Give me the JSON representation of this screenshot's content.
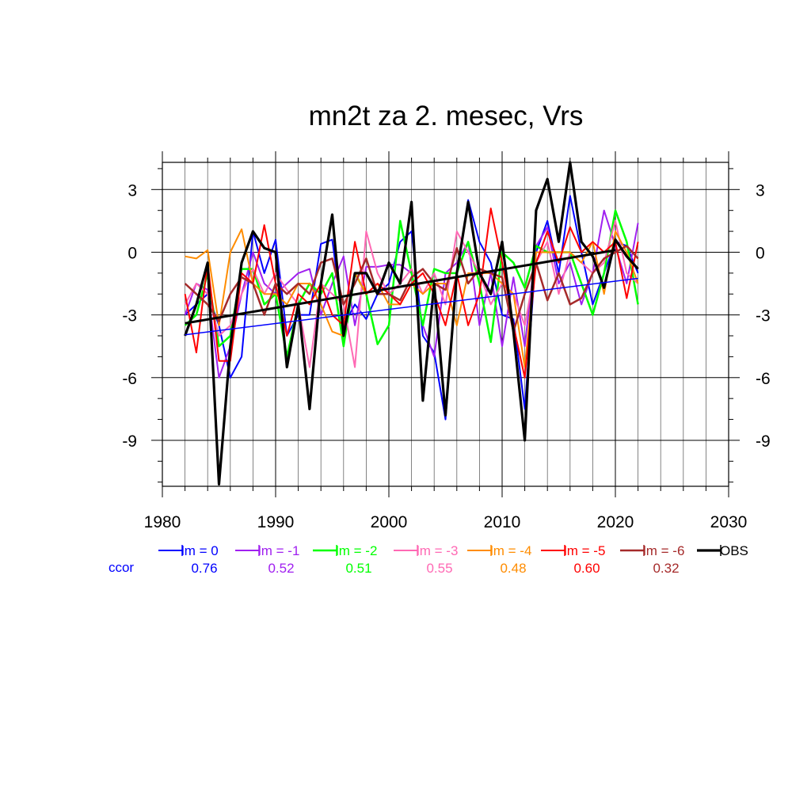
{
  "chart_data": {
    "type": "line",
    "title": "mn2t za 2. mesec, Vrs",
    "xlabel": "",
    "ylabel": "",
    "xlim": [
      1980,
      2030
    ],
    "ylim": [
      -11.2,
      4.3
    ],
    "xticks": [
      1980,
      1990,
      2000,
      2010,
      2020,
      2030
    ],
    "yticks": [
      3,
      0,
      -3,
      -6,
      -9
    ],
    "grid": true,
    "legend_position": "bottom",
    "ccor_label": "ccor",
    "x": [
      1982,
      1983,
      1984,
      1985,
      1986,
      1987,
      1988,
      1989,
      1990,
      1991,
      1992,
      1993,
      1994,
      1995,
      1996,
      1997,
      1998,
      1999,
      2000,
      2001,
      2002,
      2003,
      2004,
      2005,
      2006,
      2007,
      2008,
      2009,
      2010,
      2011,
      2012,
      2013,
      2014,
      2015,
      2016,
      2017,
      2018,
      2019,
      2020,
      2021,
      2022
    ],
    "series": [
      {
        "name": "lm = 0",
        "ccor": "0.76",
        "color": "#0000ff",
        "width": 2,
        "values": [
          -3.0,
          -2.5,
          -2.0,
          -3.5,
          -6.0,
          -5.0,
          1.0,
          -1.0,
          0.6,
          -4.0,
          -3.0,
          -3.0,
          0.4,
          0.6,
          -3.5,
          -2.5,
          -3.2,
          -2.0,
          -1.5,
          0.5,
          1.0,
          -4.0,
          -4.8,
          -8.0,
          -1.0,
          2.5,
          0.5,
          -0.5,
          -3.0,
          -3.2,
          -7.5,
          0.0,
          1.5,
          -1.0,
          2.7,
          0.0,
          -2.5,
          -1.0,
          0.5,
          0.3,
          -1.0
        ]
      },
      {
        "name": "lm = -1",
        "ccor": "0.52",
        "color": "#a020f0",
        "width": 2,
        "values": [
          -3.0,
          -1.5,
          -1.8,
          -6.0,
          -4.5,
          -2.0,
          0.0,
          -1.5,
          -2.0,
          -1.5,
          -1.0,
          -0.8,
          -3.0,
          -1.5,
          -0.2,
          -3.5,
          -0.7,
          -0.7,
          -0.6,
          -0.6,
          -1.0,
          -3.5,
          -5.0,
          -1.0,
          -0.5,
          0.5,
          -3.5,
          -1.0,
          -4.5,
          -1.2,
          -4.5,
          0.3,
          1.2,
          -1.5,
          -0.5,
          -2.5,
          -1.0,
          2.0,
          0.3,
          -1.5,
          1.4
        ]
      },
      {
        "name": "lm = -2",
        "ccor": "0.51",
        "color": "#00ff00",
        "width": 2.5,
        "values": [
          -3.5,
          -3.0,
          -1.0,
          -4.5,
          -4.0,
          -0.8,
          -0.8,
          -2.5,
          -2.0,
          -5.0,
          -2.5,
          -1.5,
          -2.0,
          -1.0,
          -4.5,
          -1.0,
          -2.0,
          -4.4,
          -3.5,
          1.5,
          -1.0,
          -3.5,
          -0.8,
          -1.0,
          -1.0,
          0.5,
          -1.5,
          -4.3,
          0.0,
          -0.5,
          -1.7,
          0.3,
          0.0,
          0.0,
          0.0,
          -1.5,
          -3.0,
          -1.0,
          2.0,
          0.5,
          -2.5
        ]
      },
      {
        "name": "lm = -3",
        "ccor": "0.55",
        "color": "#ff69b4",
        "width": 2,
        "values": [
          -2.5,
          -1.5,
          -2.0,
          -4.0,
          -3.5,
          -2.0,
          -0.8,
          -2.0,
          -1.0,
          -1.8,
          -2.5,
          -5.5,
          -1.5,
          -2.0,
          -2.5,
          -5.5,
          1.0,
          -1.0,
          -2.0,
          -1.5,
          -0.8,
          -2.0,
          -1.0,
          -2.5,
          1.0,
          0.0,
          -1.0,
          -2.5,
          -1.5,
          -2.0,
          -3.5,
          -0.5,
          0.5,
          -2.0,
          0.0,
          -0.5,
          -1.0,
          -0.5,
          1.5,
          -1.0,
          -1.5
        ]
      },
      {
        "name": "lm = -4",
        "ccor": "0.48",
        "color": "#ff8c00",
        "width": 2,
        "values": [
          -0.2,
          -0.3,
          0.1,
          -3.5,
          0.0,
          1.1,
          -1.5,
          -2.0,
          -2.0,
          -2.5,
          -1.5,
          -1.5,
          -2.5,
          -3.8,
          -4.0,
          -1.0,
          -2.0,
          -1.5,
          -2.5,
          -2.5,
          -1.5,
          -2.0,
          -1.5,
          -1.5,
          -3.5,
          -1.0,
          -1.0,
          -1.0,
          -1.5,
          -2.0,
          -5.5,
          0.0,
          0.0,
          0.0,
          0.0,
          -0.5,
          0.5,
          -2.0,
          1.0,
          0.0,
          -1.5
        ]
      },
      {
        "name": "lm = -5",
        "ccor": "0.60",
        "color": "#ff0000",
        "width": 2,
        "values": [
          -2.0,
          -4.8,
          -0.5,
          -5.2,
          -5.2,
          -1.0,
          -1.5,
          1.3,
          -1.5,
          -4.0,
          -2.0,
          -2.5,
          -1.5,
          -3.0,
          -3.5,
          0.5,
          -2.0,
          -1.5,
          -2.0,
          -2.5,
          -1.5,
          -1.0,
          -2.0,
          -3.5,
          -1.0,
          -3.5,
          -2.0,
          2.1,
          -0.5,
          -3.5,
          -6.0,
          -0.5,
          1.0,
          -0.5,
          1.2,
          0.0,
          0.5,
          0.0,
          0.5,
          -2.2,
          0.5
        ]
      },
      {
        "name": "lm = -6",
        "ccor": "0.32",
        "color": "#a52a2a",
        "width": 2.5,
        "values": [
          -1.5,
          -2.0,
          -2.5,
          -3.3,
          -2.0,
          -1.2,
          -1.5,
          -3.0,
          -1.5,
          -2.0,
          -1.5,
          -2.0,
          -0.5,
          -0.3,
          -2.5,
          -1.5,
          -0.3,
          -2.0,
          -2.0,
          -2.3,
          -1.2,
          -0.8,
          -1.5,
          -1.8,
          0.2,
          -1.5,
          -0.8,
          -1.0,
          -1.2,
          -3.8,
          -2.0,
          -0.5,
          -2.3,
          -1.0,
          -2.5,
          -2.2,
          -1.0,
          -0.3,
          0.0,
          0.3,
          -0.3
        ]
      },
      {
        "name": "OBS",
        "ccor": "",
        "color": "#000000",
        "width": 3.2,
        "values": [
          -4.0,
          -2.5,
          -0.5,
          -11.1,
          -4.5,
          -0.5,
          1.0,
          0.2,
          0.0,
          -5.5,
          -2.5,
          -7.5,
          -1.5,
          1.8,
          -4.0,
          -1.0,
          -1.0,
          -2.0,
          -0.5,
          -1.5,
          2.4,
          -7.1,
          -1.5,
          -7.8,
          -1.0,
          2.4,
          -1.0,
          -2.0,
          0.5,
          -3.8,
          -9.0,
          2.0,
          3.5,
          0.5,
          4.3,
          0.5,
          -0.2,
          -1.7,
          0.6,
          -0.2,
          -0.8
        ]
      }
    ],
    "trend_lines": [
      {
        "color": "#0000ff",
        "width": 1.5,
        "x": [
          1982,
          2022
        ],
        "y": [
          -3.95,
          -1.25
        ]
      },
      {
        "color": "#000000",
        "width": 3,
        "x": [
          1982,
          2020
        ],
        "y": [
          -3.4,
          0.1
        ]
      }
    ]
  }
}
